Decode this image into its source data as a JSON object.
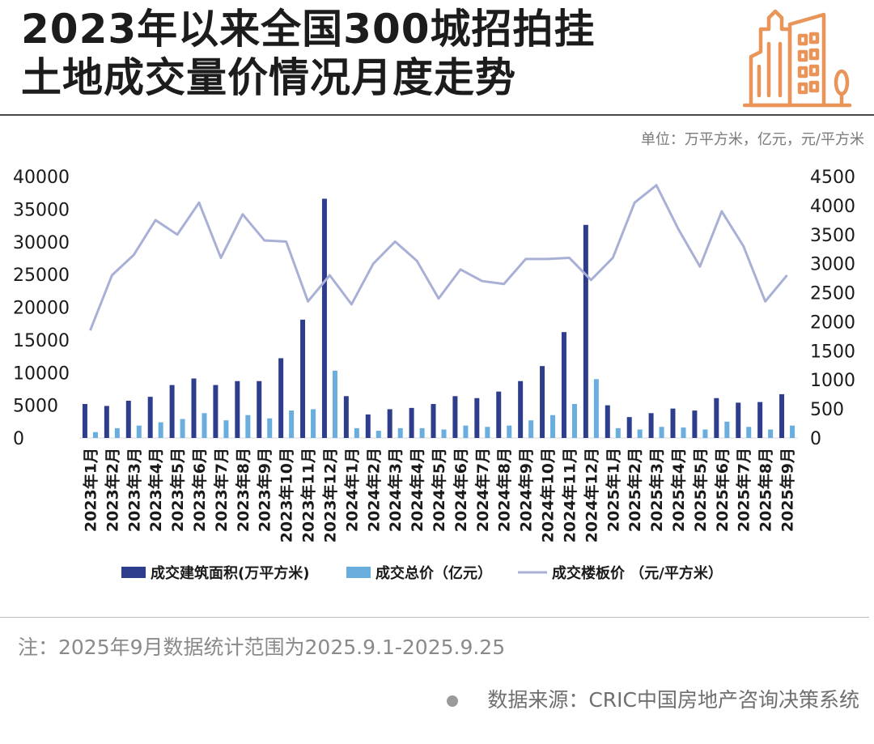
{
  "header": {
    "title_line1": "2023年以来全国300城招拍挂",
    "title_line2": "土地成交量价情况月度走势",
    "unit": "单位：万平方米，亿元，元/平方米"
  },
  "footer": {
    "note": "注：2025年9月数据统计范围为2025.9.1-2025.9.25",
    "source": "数据来源：CRIC中国房地产咨询决策系统"
  },
  "colors": {
    "area_bar": "#2e3e8c",
    "total_bar": "#6aaede",
    "price_line": "#a8b0d6",
    "logo": "#e9955a"
  },
  "chart_data": {
    "type": "bar",
    "title": "2023年以来全国300城招拍挂土地成交量价情况月度走势",
    "categories": [
      "2023年1月",
      "2023年2月",
      "2023年3月",
      "2023年4月",
      "2023年5月",
      "2023年6月",
      "2023年7月",
      "2023年8月",
      "2023年9月",
      "2023年10月",
      "2023年11月",
      "2023年12月",
      "2024年1月",
      "2024年2月",
      "2024年3月",
      "2024年4月",
      "2024年5月",
      "2024年6月",
      "2024年7月",
      "2024年8月",
      "2024年9月",
      "2024年10月",
      "2024年11月",
      "2024年12月",
      "2025年1月",
      "2025年2月",
      "2025年3月",
      "2025年4月",
      "2025年5月",
      "2025年6月",
      "2025年7月",
      "2025年8月",
      "2025年9月"
    ],
    "y_left": {
      "range": [
        0,
        40000
      ],
      "ticks": [
        "0",
        "5000",
        "10000",
        "15000",
        "20000",
        "25000",
        "30000",
        "35000",
        "40000"
      ]
    },
    "y_right": {
      "range": [
        0,
        4500
      ],
      "ticks": [
        "0",
        "500",
        "1000",
        "1500",
        "2000",
        "2500",
        "3000",
        "3500",
        "4000",
        "4500"
      ]
    },
    "series": [
      {
        "name": "成交建筑面积(万平方米)",
        "kind": "bar",
        "axis": "left",
        "values": [
          5200,
          4900,
          5700,
          6300,
          8100,
          9100,
          8100,
          8700,
          8700,
          12200,
          18100,
          36600,
          6400,
          3600,
          4400,
          4600,
          5200,
          6400,
          6100,
          7100,
          8700,
          11000,
          16200,
          32600,
          5000,
          3200,
          3800,
          4500,
          4200,
          6100,
          5400,
          5500,
          6700
        ]
      },
      {
        "name": "成交总价（亿元）",
        "kind": "bar",
        "axis": "left",
        "values": [
          900,
          1500,
          1900,
          2400,
          2900,
          3800,
          2700,
          3500,
          3000,
          4200,
          4400,
          10300,
          1500,
          1100,
          1500,
          1500,
          1300,
          1900,
          1700,
          1900,
          2700,
          3500,
          5200,
          9000,
          1500,
          1300,
          1700,
          1600,
          1300,
          2500,
          1700,
          1300,
          1900
        ]
      },
      {
        "name": "成交楼板价 （元/平方米）",
        "kind": "line",
        "axis": "right",
        "values": [
          1850,
          2800,
          3150,
          3750,
          3500,
          4050,
          3100,
          3850,
          3400,
          3380,
          2350,
          2800,
          2300,
          3000,
          3380,
          3050,
          2400,
          2900,
          2700,
          2650,
          3080,
          3080,
          3100,
          2720,
          3100,
          4050,
          4350,
          3600,
          2950,
          3900,
          3300,
          2350,
          2800
        ]
      }
    ],
    "legend_position": "bottom",
    "grid": false
  }
}
